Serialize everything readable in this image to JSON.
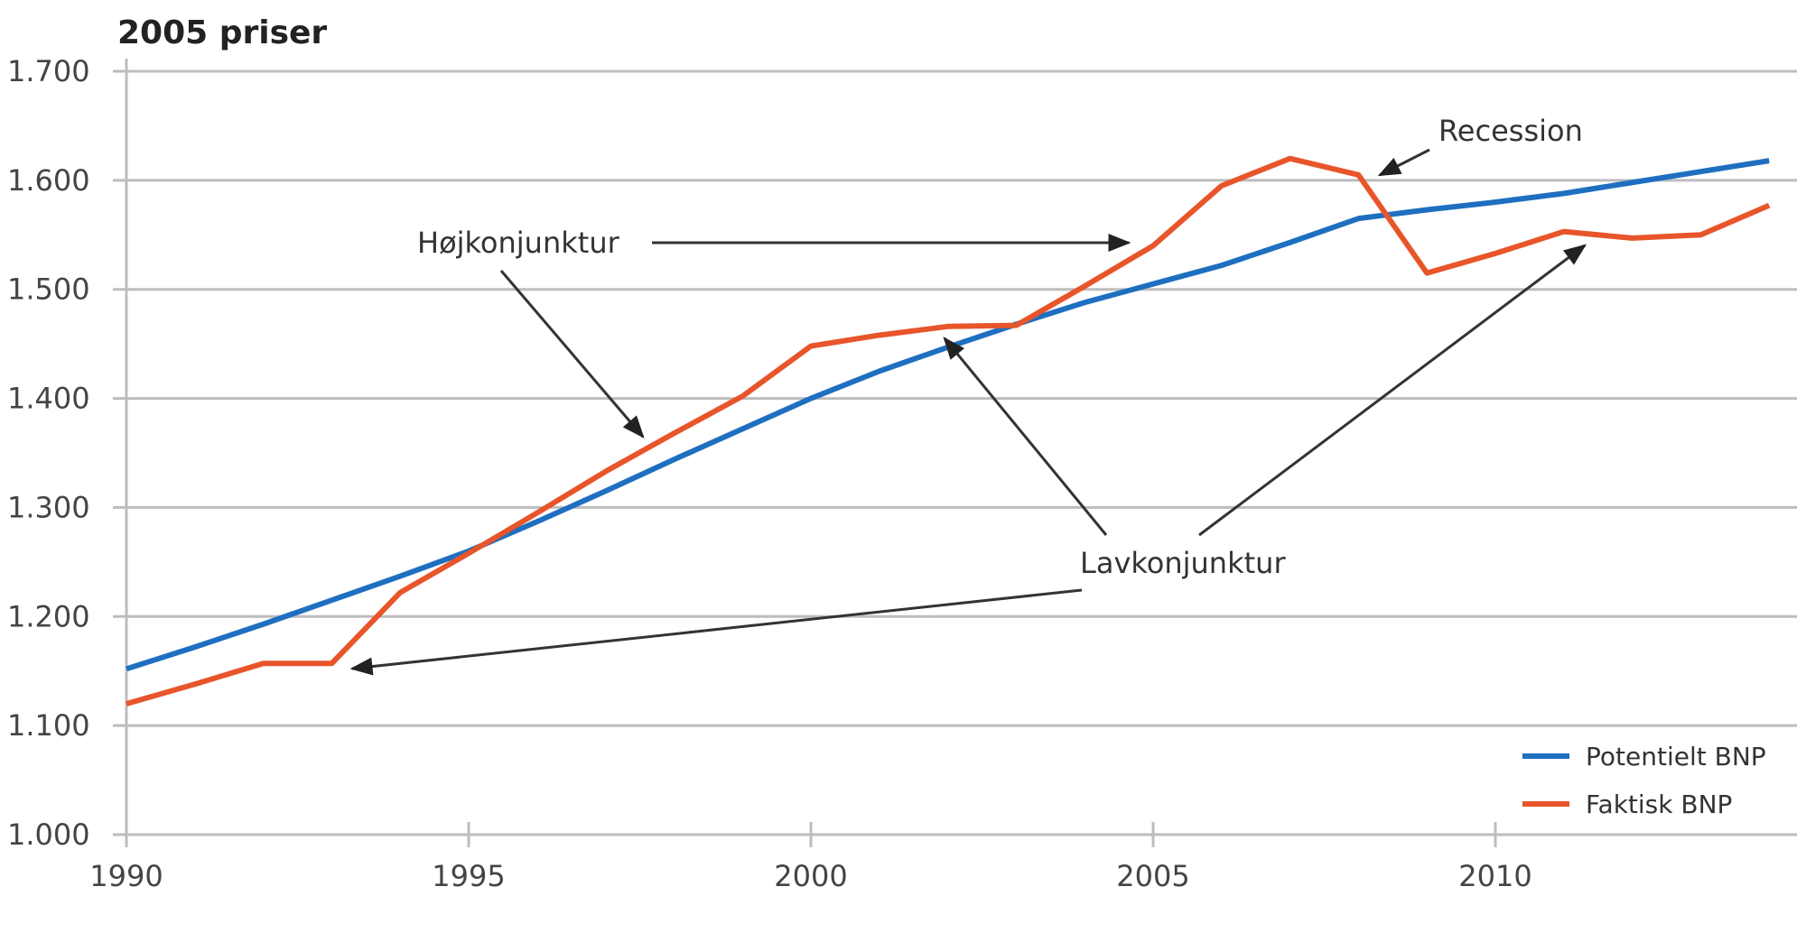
{
  "chart_data": {
    "type": "line",
    "title": "2005 priser",
    "xlabel": "",
    "ylabel": "",
    "xlim": [
      1990,
      2014.5
    ],
    "ylim": [
      1000,
      1700
    ],
    "grid": "horizontal",
    "legend_position": "bottom-right",
    "x_ticks": [
      1990,
      1995,
      2000,
      2005,
      2010
    ],
    "y_ticks": [
      1000,
      1100,
      1200,
      1300,
      1400,
      1500,
      1600,
      1700
    ],
    "y_tick_labels": [
      "1.000",
      "1.100",
      "1.200",
      "1.300",
      "1.400",
      "1.500",
      "1.600",
      "1.700"
    ],
    "x": [
      1990,
      1991,
      1992,
      1993,
      1994,
      1995,
      1996,
      1997,
      1998,
      1999,
      2000,
      2001,
      2002,
      2003,
      2004,
      2005,
      2006,
      2007,
      2008,
      2009,
      2010,
      2011,
      2012,
      2013,
      2014
    ],
    "series": [
      {
        "name": "Potentielt BNP",
        "color": "#1f6fc0",
        "values": [
          1152,
          1172,
          1193,
          1215,
          1237,
          1260,
          1287,
          1315,
          1344,
          1372,
          1400,
          1425,
          1447,
          1468,
          1488,
          1505,
          1522,
          1543,
          1565,
          1573,
          1580,
          1588,
          1598,
          1608,
          1618
        ]
      },
      {
        "name": "Faktisk BNP",
        "color": "#e8552a",
        "values": [
          1120,
          1138,
          1157,
          1157,
          1222,
          1258,
          1295,
          1333,
          1368,
          1402,
          1448,
          1458,
          1466,
          1467,
          1503,
          1540,
          1595,
          1620,
          1605,
          1515,
          1533,
          1553,
          1547,
          1550,
          1577
        ]
      }
    ],
    "annotations": [
      {
        "text": "Højkonjunktur"
      },
      {
        "text": "Lavkonjunktur"
      },
      {
        "text": "Recession"
      }
    ]
  }
}
